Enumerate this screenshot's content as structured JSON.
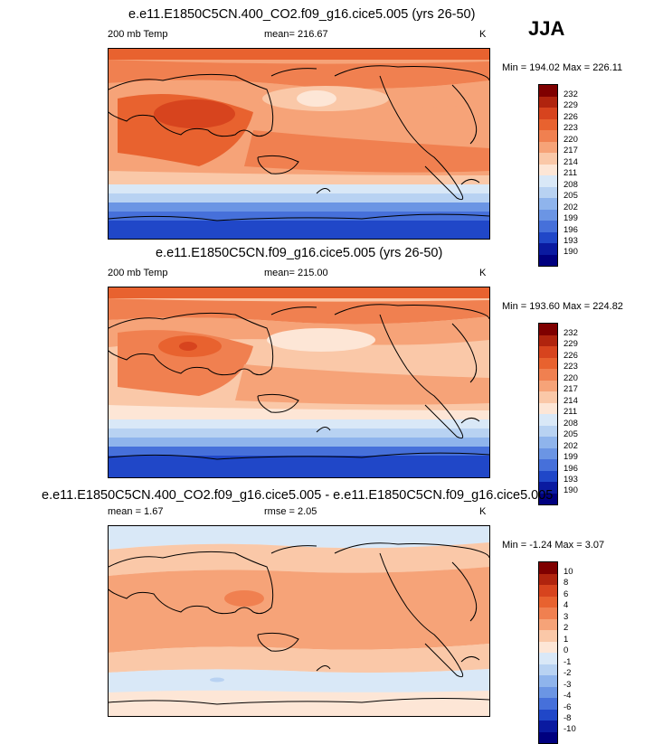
{
  "season": "JJA",
  "panels": [
    {
      "title": "e.e11.E1850C5CN.400_CO2.f09_g16.cice5.005 (yrs 26-50)",
      "left_label": "200 mb Temp",
      "center_label": "mean= 216.67",
      "units": "K",
      "minmax": "Min = 194.02 Max = 226.11",
      "colorbar_labels": [
        "232",
        "229",
        "226",
        "223",
        "220",
        "217",
        "214",
        "211",
        "208",
        "205",
        "202",
        "199",
        "196",
        "193",
        "190"
      ]
    },
    {
      "title": "e.e11.E1850C5CN.f09_g16.cice5.005 (yrs 26-50)",
      "left_label": "200 mb Temp",
      "center_label": "mean= 215.00",
      "units": "K",
      "minmax": "Min = 193.60 Max = 224.82",
      "colorbar_labels": [
        "232",
        "229",
        "226",
        "223",
        "220",
        "217",
        "214",
        "211",
        "208",
        "205",
        "202",
        "199",
        "196",
        "193",
        "190"
      ]
    },
    {
      "title": "e.e11.E1850C5CN.400_CO2.f09_g16.cice5.005 - e.e11.E1850C5CN.f09_g16.cice5.005",
      "left_label": "mean =   1.67",
      "center_label": "rmse =   2.05",
      "units": "K",
      "minmax": "Min =  -1.24 Max =   3.07",
      "colorbar_labels": [
        "10",
        "8",
        "6",
        "4",
        "3",
        "2",
        "1",
        "0",
        "-1",
        "-2",
        "-3",
        "-4",
        "-6",
        "-8",
        "-10"
      ]
    }
  ],
  "colors": {
    "scale": [
      "#7f0000",
      "#b0240e",
      "#d7441e",
      "#e8622f",
      "#f08050",
      "#f6a378",
      "#fac8a8",
      "#fde6d6",
      "#d9e8f7",
      "#b8d2f2",
      "#8fb4ec",
      "#6b95e4",
      "#4670da",
      "#2047c8",
      "#0a1aa0",
      "#00007f"
    ],
    "coast": "#000000"
  }
}
